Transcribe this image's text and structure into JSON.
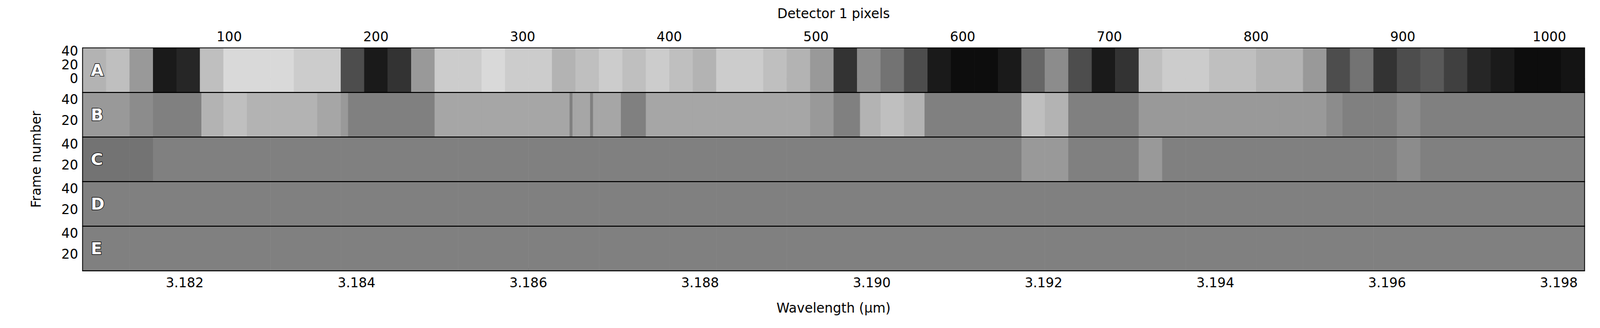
{
  "chart_data": {
    "type": "heatmap",
    "x_label_top": "Detector 1 pixels",
    "x_label": "Wavelength (μm)",
    "y_label": "Frame number",
    "xlim": [
      0,
      1024
    ],
    "xticks": [
      100,
      200,
      300,
      400,
      500,
      600,
      700,
      800,
      900,
      1000
    ],
    "wavelength_lim": [
      3.18081,
      3.1983
    ],
    "wavelength_ticks": [
      3.182,
      3.184,
      3.186,
      3.188,
      {
        "value": 3.19,
        "label": "3.190"
      },
      3.192,
      3.194,
      3.196,
      3.198
    ],
    "color_range": [
      0,
      1
    ],
    "grid": false,
    "bin_edges": [
      0,
      16,
      32,
      48,
      64,
      80,
      96,
      112,
      128,
      144,
      160,
      176,
      192,
      208,
      224,
      240,
      256,
      272,
      288,
      304,
      320,
      336,
      352,
      368,
      384,
      400,
      416,
      432,
      448,
      464,
      480,
      496,
      512,
      528,
      544,
      560,
      576,
      592,
      608,
      624,
      640,
      656,
      672,
      688,
      704,
      720,
      736,
      752,
      768,
      784,
      800,
      816,
      832,
      848,
      864,
      880,
      896,
      912,
      928,
      944,
      960,
      976,
      992,
      1008,
      1024
    ],
    "panels": [
      {
        "label": "A",
        "ylim": [
          -20,
          45
        ],
        "yticks": [
          0,
          20,
          40
        ],
        "values": [
          0.7,
          0.75,
          0.6,
          0.1,
          0.15,
          0.75,
          0.85,
          0.85,
          0.85,
          0.8,
          0.8,
          0.3,
          0.1,
          0.2,
          0.6,
          0.8,
          0.8,
          0.85,
          0.8,
          0.8,
          0.7,
          0.75,
          0.8,
          0.75,
          0.8,
          0.75,
          0.7,
          0.8,
          0.8,
          0.75,
          0.7,
          0.6,
          0.2,
          0.55,
          0.45,
          0.3,
          0.1,
          0.05,
          0.05,
          0.1,
          0.4,
          0.55,
          0.3,
          0.1,
          0.2,
          0.75,
          0.8,
          0.8,
          0.75,
          0.75,
          0.7,
          0.7,
          0.6,
          0.3,
          0.45,
          0.2,
          0.3,
          0.35,
          0.25,
          0.15,
          0.1,
          0.05,
          0.05,
          0.08
        ],
        "masks": []
      },
      {
        "label": "B",
        "ylim": [
          4,
          47
        ],
        "yticks": [
          20,
          40
        ],
        "values": [
          0.6,
          0.6,
          0.55,
          0.5,
          0.5,
          0.7,
          0.75,
          0.7,
          0.7,
          0.7,
          0.65,
          0.6,
          0.5,
          0.5,
          0.5,
          0.65,
          0.65,
          0.65,
          0.65,
          0.65,
          0.65,
          0.65,
          0.65,
          0.65,
          0.65,
          0.65,
          0.65,
          0.65,
          0.65,
          0.65,
          0.65,
          0.6,
          0.5,
          0.7,
          0.75,
          0.7,
          0.5,
          0.5,
          0.5,
          0.5,
          0.75,
          0.7,
          0.5,
          0.5,
          0.5,
          0.6,
          0.6,
          0.6,
          0.6,
          0.6,
          0.6,
          0.6,
          0.6,
          0.55,
          0.5,
          0.5,
          0.55,
          0.5,
          0.5,
          0.5,
          0.5,
          0.5,
          0.5,
          0.5
        ],
        "masks": [
          [
            52,
            81
          ],
          [
            181,
            233
          ],
          [
            332,
            334
          ],
          [
            346,
            348
          ],
          [
            367,
            384
          ],
          [
            516,
            530
          ],
          [
            574,
            640
          ],
          [
            680,
            717
          ],
          [
            859,
            865
          ],
          [
            886,
            891
          ],
          [
            924,
            1024
          ]
        ]
      },
      {
        "label": "C",
        "ylim": [
          4,
          47
        ],
        "yticks": [
          20,
          40
        ],
        "values": [
          0.45,
          0.45,
          0.45,
          0.5,
          0.5,
          0.5,
          0.5,
          0.5,
          0.5,
          0.5,
          0.5,
          0.5,
          0.5,
          0.5,
          0.5,
          0.5,
          0.5,
          0.5,
          0.5,
          0.5,
          0.5,
          0.5,
          0.5,
          0.5,
          0.5,
          0.5,
          0.5,
          0.5,
          0.5,
          0.5,
          0.5,
          0.5,
          0.5,
          0.5,
          0.5,
          0.5,
          0.5,
          0.5,
          0.5,
          0.5,
          0.6,
          0.6,
          0.5,
          0.5,
          0.5,
          0.6,
          0.5,
          0.5,
          0.5,
          0.5,
          0.5,
          0.5,
          0.5,
          0.5,
          0.5,
          0.5,
          0.55,
          0.5,
          0.5,
          0.5,
          0.5,
          0.5,
          0.5,
          0.5
        ],
        "masks": [
          [
            52,
            81
          ],
          [
            181,
            233
          ],
          [
            367,
            384
          ],
          [
            516,
            530
          ],
          [
            574,
            640
          ],
          [
            680,
            717
          ],
          [
            859,
            865
          ],
          [
            886,
            891
          ],
          [
            924,
            1024
          ]
        ]
      },
      {
        "label": "D",
        "ylim": [
          4,
          47
        ],
        "yticks": [
          20,
          40
        ],
        "values": [
          0.5,
          0.5,
          0.5,
          0.5,
          0.5,
          0.5,
          0.5,
          0.5,
          0.5,
          0.5,
          0.5,
          0.5,
          0.5,
          0.5,
          0.5,
          0.5,
          0.5,
          0.5,
          0.5,
          0.5,
          0.5,
          0.5,
          0.5,
          0.5,
          0.5,
          0.5,
          0.5,
          0.5,
          0.5,
          0.5,
          0.5,
          0.5,
          0.5,
          0.5,
          0.5,
          0.5,
          0.5,
          0.5,
          0.5,
          0.5,
          0.5,
          0.5,
          0.5,
          0.5,
          0.5,
          0.5,
          0.5,
          0.5,
          0.5,
          0.5,
          0.5,
          0.5,
          0.5,
          0.5,
          0.5,
          0.5,
          0.5,
          0.5,
          0.5,
          0.5,
          0.5,
          0.5,
          0.5,
          0.5
        ],
        "masks": [
          [
            52,
            81
          ],
          [
            181,
            233
          ],
          [
            367,
            384
          ],
          [
            516,
            530
          ],
          [
            574,
            640
          ],
          [
            680,
            717
          ],
          [
            859,
            865
          ],
          [
            886,
            891
          ],
          [
            924,
            1024
          ]
        ]
      },
      {
        "label": "E",
        "ylim": [
          4,
          47
        ],
        "yticks": [
          20,
          40
        ],
        "values": [
          0.5,
          0.5,
          0.5,
          0.5,
          0.5,
          0.5,
          0.5,
          0.5,
          0.5,
          0.5,
          0.5,
          0.5,
          0.5,
          0.5,
          0.5,
          0.5,
          0.5,
          0.5,
          0.5,
          0.5,
          0.5,
          0.5,
          0.5,
          0.5,
          0.5,
          0.5,
          0.5,
          0.5,
          0.5,
          0.5,
          0.5,
          0.5,
          0.5,
          0.5,
          0.5,
          0.5,
          0.5,
          0.5,
          0.5,
          0.5,
          0.5,
          0.5,
          0.5,
          0.5,
          0.5,
          0.5,
          0.5,
          0.5,
          0.5,
          0.5,
          0.5,
          0.5,
          0.5,
          0.5,
          0.5,
          0.5,
          0.5,
          0.5,
          0.5,
          0.5,
          0.5,
          0.5,
          0.5,
          0.5
        ],
        "masks": [
          [
            52,
            81
          ],
          [
            181,
            233
          ],
          [
            367,
            384
          ],
          [
            516,
            530
          ],
          [
            574,
            640
          ],
          [
            680,
            717
          ],
          [
            859,
            865
          ],
          [
            886,
            891
          ],
          [
            924,
            1024
          ]
        ]
      }
    ]
  }
}
